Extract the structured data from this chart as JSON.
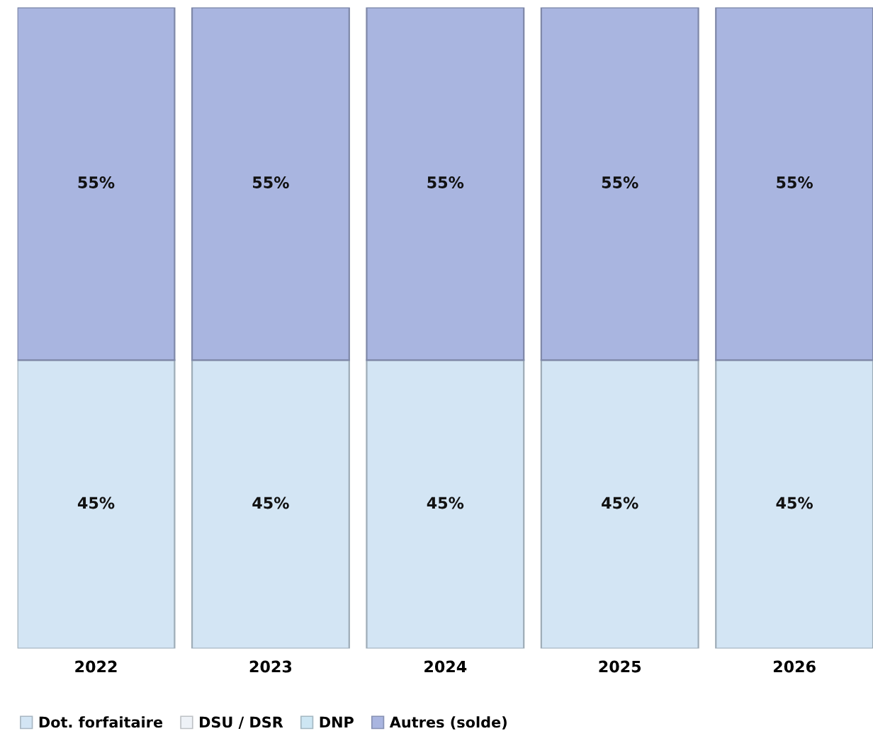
{
  "chart_data": {
    "type": "bar",
    "stacked": true,
    "categories": [
      "2022",
      "2023",
      "2024",
      "2025",
      "2026"
    ],
    "series": [
      {
        "name": "Dot. forfaitaire",
        "color": "#d3e5f4",
        "values": [
          45,
          45,
          45,
          45,
          45
        ],
        "value_labels": [
          "45%",
          "45%",
          "45%",
          "45%",
          "45%"
        ]
      },
      {
        "name": "DSU / DSR",
        "color": "#eef2f7",
        "values": [
          null,
          null,
          null,
          null,
          null
        ]
      },
      {
        "name": "DNP",
        "color": "#cde6f3",
        "values": [
          null,
          null,
          null,
          null,
          null
        ]
      },
      {
        "name": "Autres (solde)",
        "color": "#a9b5e0",
        "values": [
          55,
          55,
          55,
          55,
          55
        ],
        "value_labels": [
          "55%",
          "55%",
          "55%",
          "55%",
          "55%"
        ]
      }
    ],
    "legend": "bottom left",
    "grid": false
  }
}
